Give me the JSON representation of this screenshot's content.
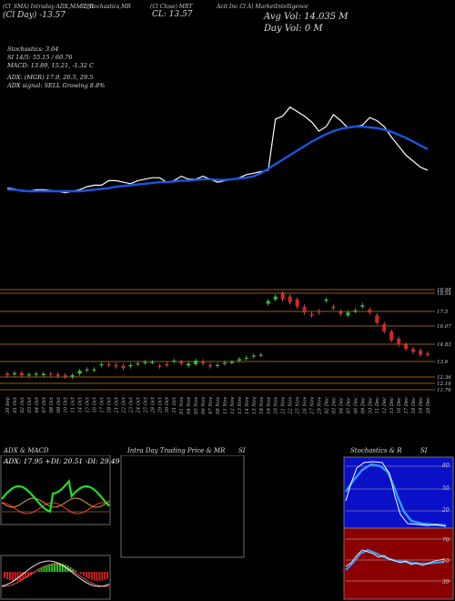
{
  "header": {
    "line1": "(Cl_SMA)  Intraday ADX,MACD,R",
    "line2": "(Cl  Day)  ",
    "line2b": "-13.57",
    "stoch_label": "SI,Stochastics,MR",
    "cl_tag": "(Cl Close) MRT",
    "cl_value": "CL: 13.57",
    "company": "Acit Inc Cl A) MarketIntelligence",
    "avg_vol": "Avg Vol: 14.035  M",
    "day_vol": "Day Vol: 0   M"
  },
  "indicators": {
    "stochastics": "Stochastics: 3.64",
    "si": "SI 14/5: 55.15 / 60.76",
    "macd": "MACD: 13.89, 15.21, -1.32  C",
    "adx": "ADX:                          (MGR) 17.9, 20.5, 29.5",
    "adx_signal": "ADX  signal: SELL Growing 8.8%"
  },
  "price_levels": [
    "18.98",
    "18.54",
    "17.5",
    "16.07",
    "14.83",
    "13.6",
    "12.36",
    "12.16",
    "11.76"
  ],
  "dates": [
    "30 Sep",
    "01 Oct",
    "02 Oct",
    "03 Oct",
    "04 Oct",
    "07 Oct",
    "08 Oct",
    "09 Oct",
    "10 Oct",
    "11 Oct",
    "14 Oct",
    "15 Oct",
    "16 Oct",
    "17 Oct",
    "18 Oct",
    "21 Oct",
    "22 Oct",
    "23 Oct",
    "24 Oct",
    "25 Oct",
    "28 Oct",
    "29 Oct",
    "30 Oct",
    "31 Oct",
    "01 Nov",
    "04 Nov",
    "05 Nov",
    "06 Nov",
    "07 Nov",
    "08 Nov",
    "11 Nov",
    "12 Nov",
    "13 Nov",
    "14 Nov",
    "15 Nov",
    "18 Nov",
    "19 Nov",
    "20 Nov",
    "21 Nov",
    "22 Nov",
    "25 Nov",
    "26 Nov",
    "27 Nov",
    "29 Nov",
    "02 Dec",
    "03 Dec",
    "04 Dec",
    "05 Dec",
    "06 Dec",
    "09 Dec",
    "10 Dec",
    "11 Dec",
    "12 Dec",
    "13 Dec",
    "16 Dec",
    "17 Dec",
    "18 Dec",
    "19 Dec",
    "20 Dec"
  ],
  "panels": {
    "adx_title": "ADX  & MACD",
    "adx_readout": "ADX: 17.95  +DI: 20.51  -DI: 29.49",
    "intraday_title": "Intra  Day Trading Price  & MR",
    "intraday_title2": "SI",
    "stoch_title": "Stochastics & R",
    "stoch_title2": "SI",
    "stoch_levels": [
      "80",
      "50",
      "20"
    ],
    "rsi_levels": [
      "70",
      "50",
      "30"
    ]
  },
  "colors": {
    "up": "#22cc22",
    "down": "#dd2222",
    "ma": "#1a55e0",
    "price_line": "#ffffff",
    "grid": "#c87a1e",
    "stoch_bg": "#0a10c8",
    "rsi_bg": "#8a0000"
  },
  "chart_data": [
    {
      "type": "line",
      "title": "",
      "series": [
        {
          "values": [
            12.4,
            12.35,
            12.2,
            12.2,
            12.3,
            12.3,
            12.25,
            12.2,
            12.1,
            12.2,
            12.3,
            12.5,
            12.6,
            12.6,
            12.9,
            12.9,
            12.8,
            12.7,
            12.9,
            13.0,
            13.1,
            13.1,
            12.8,
            12.9,
            13.2,
            13.0,
            13.0,
            13.2,
            13.0,
            12.8,
            12.9,
            13.0,
            13.1,
            13.3,
            13.4,
            13.5,
            13.6,
            17.0,
            17.2,
            17.8,
            17.5,
            17.2,
            16.8,
            16.2,
            16.5,
            17.3,
            16.9,
            16.4,
            16.5,
            16.6,
            17.1,
            16.9,
            16.5,
            15.8,
            15.2,
            14.6,
            14.2,
            13.8,
            13.6
          ]
        },
        {
          "values": [
            12.3,
            12.3,
            12.25,
            12.2,
            12.2,
            12.2,
            12.2,
            12.2,
            12.2,
            12.2,
            12.2,
            12.25,
            12.3,
            12.35,
            12.4,
            12.5,
            12.55,
            12.6,
            12.65,
            12.7,
            12.75,
            12.8,
            12.8,
            12.85,
            12.9,
            12.9,
            12.95,
            13.0,
            13.0,
            12.95,
            12.95,
            13.0,
            13.05,
            13.1,
            13.2,
            13.4,
            13.7,
            14.0,
            14.3,
            14.6,
            14.9,
            15.2,
            15.5,
            15.75,
            16.0,
            16.2,
            16.35,
            16.45,
            16.5,
            16.5,
            16.45,
            16.4,
            16.3,
            16.15,
            15.95,
            15.75,
            15.5,
            15.25,
            15.0
          ]
        }
      ]
    },
    {
      "type": "bar",
      "title": "",
      "series": [
        {
          "name": "open",
          "values": [
            12.3,
            12.25,
            12.35,
            12.2,
            12.25,
            12.2,
            12.3,
            12.25,
            12.2,
            12.1,
            12.3,
            12.55,
            12.55,
            12.9,
            12.95,
            12.9,
            12.85,
            12.8,
            12.95,
            13.05,
            13.1,
            12.85,
            12.95,
            13.15,
            13.1,
            12.85,
            12.95,
            13.15,
            12.9,
            12.85,
            13.0,
            13.1,
            13.2,
            13.35,
            13.5,
            13.6,
            17.1,
            17.4,
            17.8,
            17.6,
            17.4,
            16.9,
            16.4,
            16.6,
            17.3,
            16.9,
            16.55,
            16.3,
            16.6,
            16.9,
            16.7,
            16.3,
            15.7,
            15.2,
            14.7,
            14.3,
            14.0,
            13.9,
            13.7
          ]
        },
        {
          "name": "close",
          "values": [
            12.2,
            12.35,
            12.2,
            12.25,
            12.3,
            12.3,
            12.25,
            12.15,
            12.1,
            12.2,
            12.5,
            12.6,
            12.6,
            12.95,
            12.9,
            12.8,
            12.7,
            12.9,
            13.0,
            13.1,
            13.1,
            12.8,
            12.9,
            13.2,
            13.0,
            13.0,
            13.2,
            13.0,
            12.8,
            12.9,
            13.05,
            13.1,
            13.3,
            13.4,
            13.55,
            13.6,
            17.3,
            17.6,
            17.4,
            17.2,
            16.9,
            16.5,
            16.3,
            16.5,
            17.4,
            16.8,
            16.4,
            16.5,
            16.65,
            17.0,
            16.5,
            15.8,
            15.2,
            14.6,
            14.3,
            14.0,
            13.8,
            13.6,
            13.6
          ]
        }
      ]
    }
  ]
}
